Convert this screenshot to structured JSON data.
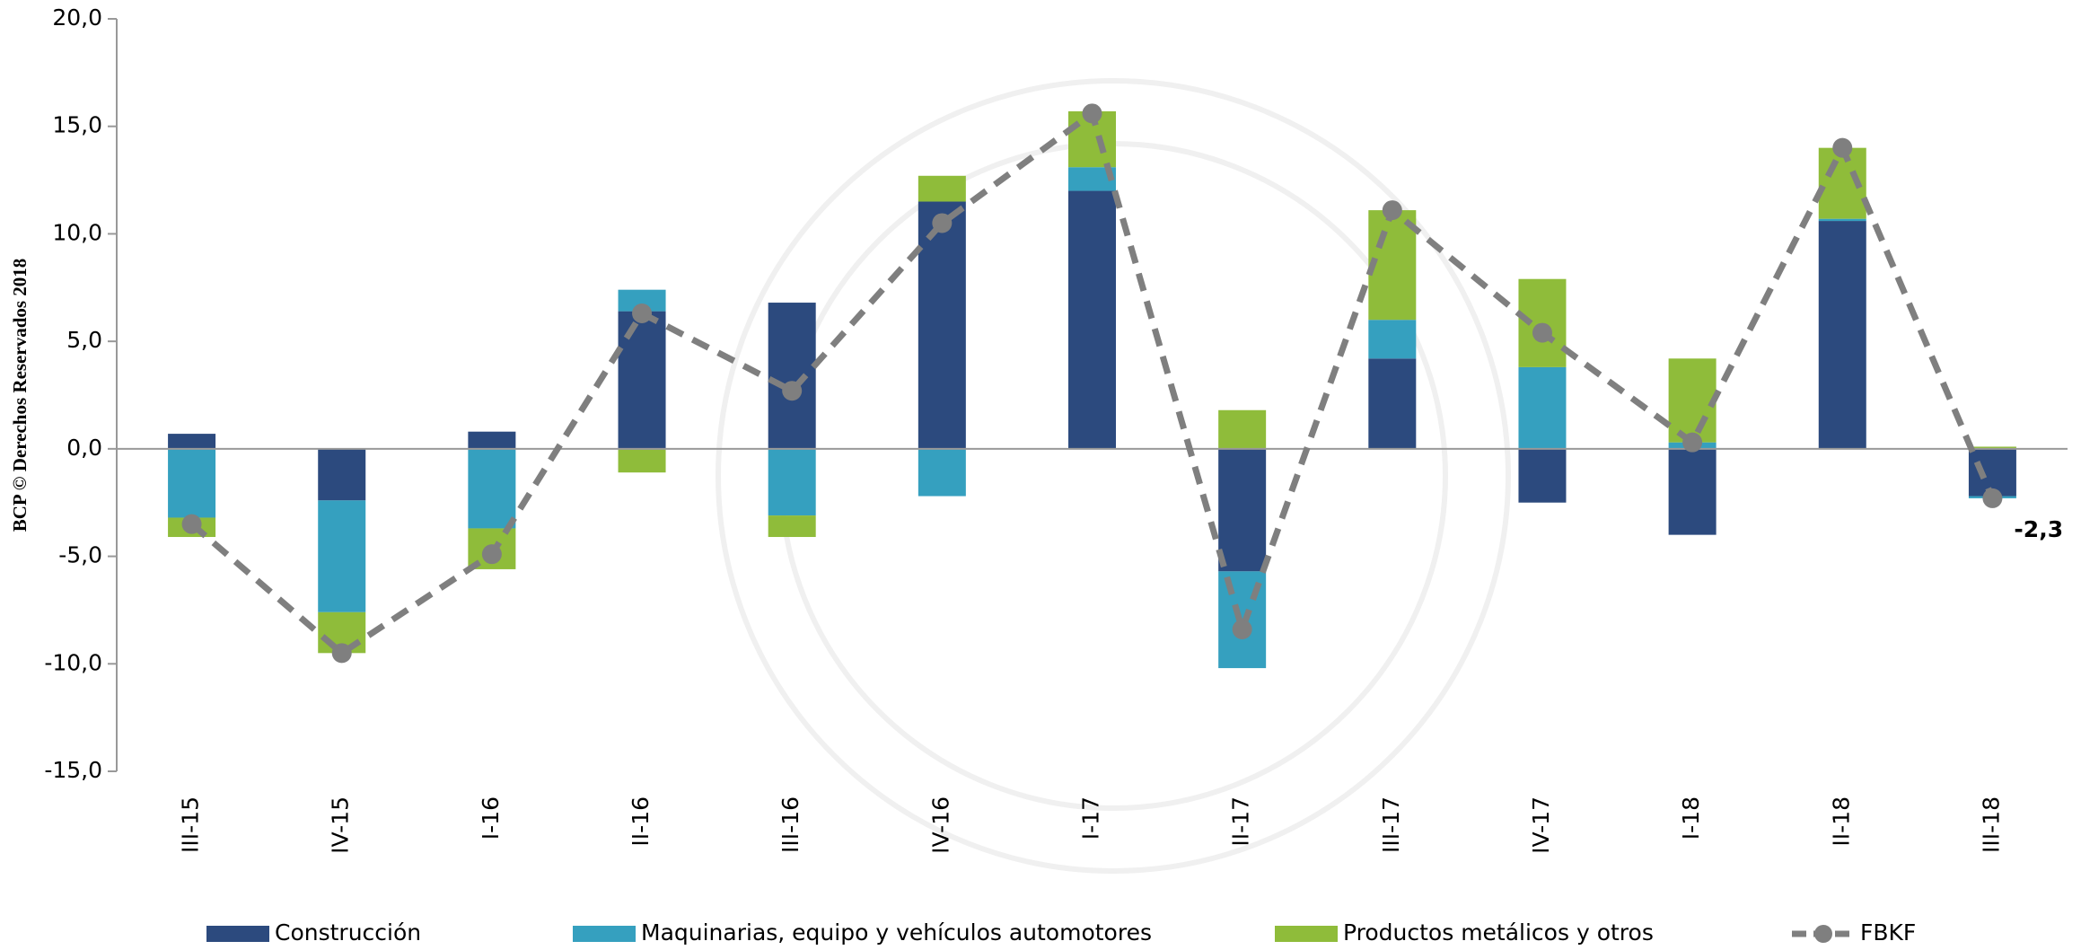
{
  "chart_data": {
    "type": "stacked_bar_line",
    "side_text": "BCP © Derechos Reservados 2018",
    "categories": [
      "III-15",
      "IV-15",
      "I-16",
      "II-16",
      "III-16",
      "IV-16",
      "I-17",
      "II-17",
      "III-17",
      "IV-17",
      "I-18",
      "II-18",
      "III-18"
    ],
    "series": [
      {
        "name": "Construcción",
        "kind": "bar",
        "color": "#2c4a7e",
        "values": [
          0.7,
          -2.4,
          0.8,
          6.4,
          6.8,
          11.5,
          12.0,
          -5.7,
          4.2,
          -2.5,
          -4.0,
          10.6,
          -2.2
        ]
      },
      {
        "name": "Maquinarias, equipo y vehículos automotores",
        "kind": "bar",
        "color": "#35a0bf",
        "values": [
          -3.2,
          -5.2,
          -3.7,
          1.0,
          -3.1,
          -2.2,
          1.1,
          -4.5,
          1.8,
          3.8,
          0.3,
          0.1,
          -0.1
        ]
      },
      {
        "name": "Productos metálicos y otros",
        "kind": "bar",
        "color": "#8fbc3a",
        "values": [
          -0.9,
          -1.9,
          -1.9,
          -1.1,
          -1.0,
          1.2,
          2.6,
          1.8,
          5.1,
          4.1,
          3.9,
          3.3,
          0.1
        ]
      },
      {
        "name": "FBKF",
        "kind": "line",
        "color": "#7f7f7f",
        "values": [
          -3.5,
          -9.5,
          -4.9,
          6.3,
          2.7,
          10.5,
          15.6,
          -8.4,
          11.1,
          5.4,
          0.3,
          14.0,
          -2.3
        ],
        "value_labels": [
          null,
          null,
          null,
          null,
          null,
          null,
          null,
          null,
          null,
          null,
          null,
          null,
          "-2,3"
        ]
      }
    ],
    "ylim": [
      -15,
      20
    ],
    "yticks": [
      {
        "value": -15,
        "label": "-15,0"
      },
      {
        "value": -10,
        "label": "-10,0"
      },
      {
        "value": -5,
        "label": "-5,0"
      },
      {
        "value": 0,
        "label": "0,0"
      },
      {
        "value": 5,
        "label": "5,0"
      },
      {
        "value": 10,
        "label": "10,0"
      },
      {
        "value": 15,
        "label": "15,0"
      },
      {
        "value": 20,
        "label": "20,0"
      }
    ],
    "legend": "bottom"
  }
}
